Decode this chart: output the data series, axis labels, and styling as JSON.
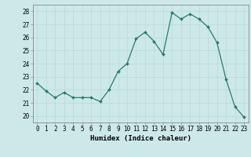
{
  "x": [
    0,
    1,
    2,
    3,
    4,
    5,
    6,
    7,
    8,
    9,
    10,
    11,
    12,
    13,
    14,
    15,
    16,
    17,
    18,
    19,
    20,
    21,
    22,
    23
  ],
  "y": [
    22.5,
    21.9,
    21.4,
    21.8,
    21.4,
    21.4,
    21.4,
    21.1,
    22.0,
    23.4,
    24.0,
    25.9,
    26.4,
    25.7,
    24.7,
    27.9,
    27.4,
    27.8,
    27.4,
    26.8,
    25.6,
    22.8,
    20.7,
    19.9
  ],
  "line_color": "#2d7a6a",
  "marker": "D",
  "marker_size": 2.0,
  "bg_color": "#cce9e8",
  "grid_color": "#b8d8d6",
  "xlabel": "Humidex (Indice chaleur)",
  "xlim": [
    -0.5,
    23.5
  ],
  "ylim": [
    19.5,
    28.5
  ],
  "yticks": [
    20,
    21,
    22,
    23,
    24,
    25,
    26,
    27,
    28
  ],
  "xticks": [
    0,
    1,
    2,
    3,
    4,
    5,
    6,
    7,
    8,
    9,
    10,
    11,
    12,
    13,
    14,
    15,
    16,
    17,
    18,
    19,
    20,
    21,
    22,
    23
  ],
  "tick_fontsize": 5.5,
  "label_fontsize": 6.5
}
